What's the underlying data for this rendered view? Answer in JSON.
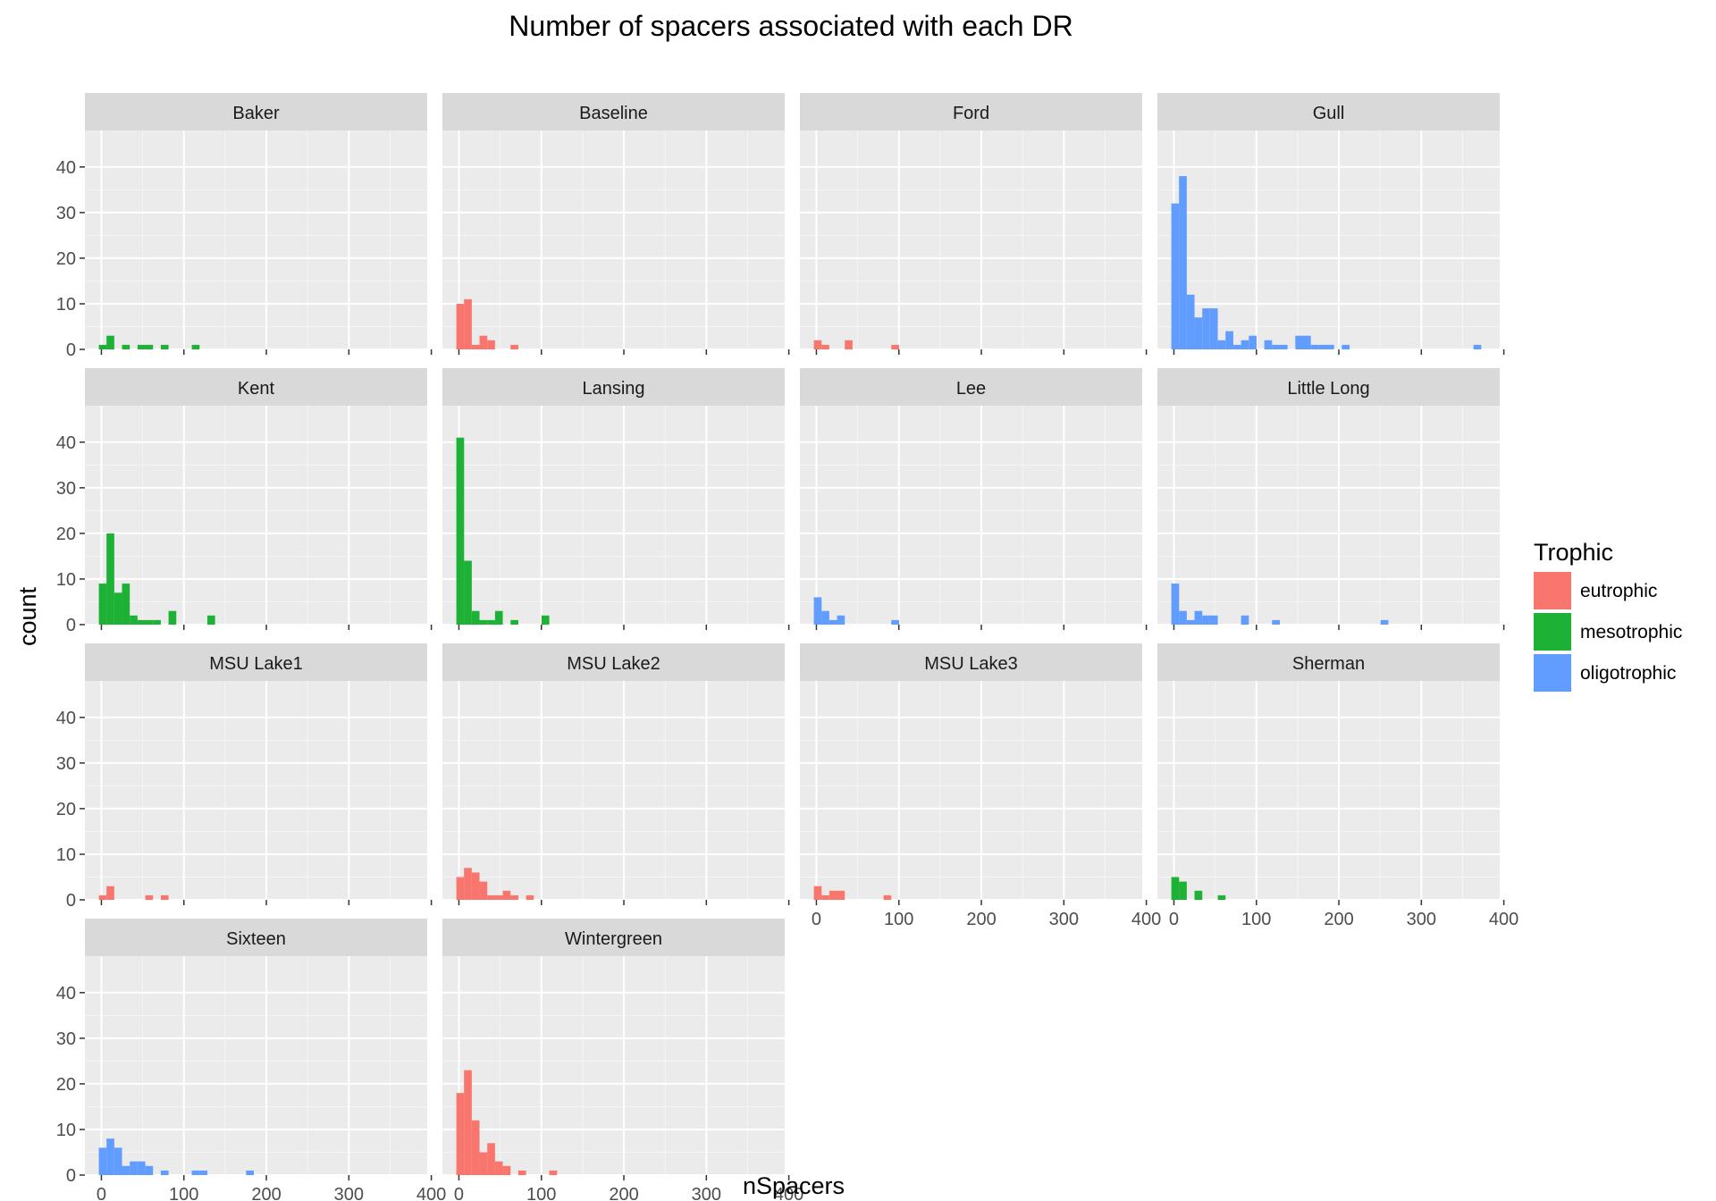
{
  "chart_data": {
    "type": "histogram",
    "title": "Number of spacers associated with each DR",
    "xlabel": "nSpacers",
    "ylabel": "count",
    "xlim": [
      -20,
      395
    ],
    "ylim": [
      0,
      48
    ],
    "x_ticks": [
      0,
      100,
      200,
      300,
      400
    ],
    "y_ticks": [
      0,
      10,
      20,
      30,
      40
    ],
    "bin_width": 9.4,
    "grid": true,
    "legend": {
      "title": "Trophic",
      "position": "right",
      "entries": [
        {
          "name": "eutrophic",
          "color": "#F8766D"
        },
        {
          "name": "mesotrophic",
          "color": "#1DB235"
        },
        {
          "name": "oligotrophic",
          "color": "#619CFF"
        }
      ]
    },
    "panels": [
      {
        "name": "Baker",
        "trophic": "mesotrophic",
        "bins": [
          {
            "x": 1.6,
            "count": 1
          },
          {
            "x": 10.9,
            "count": 3
          },
          {
            "x": 29.7,
            "count": 1
          },
          {
            "x": 48.5,
            "count": 1
          },
          {
            "x": 57.9,
            "count": 1
          },
          {
            "x": 76.7,
            "count": 1
          },
          {
            "x": 114.3,
            "count": 1
          }
        ]
      },
      {
        "name": "Baseline",
        "trophic": "eutrophic",
        "bins": [
          {
            "x": 1.6,
            "count": 10
          },
          {
            "x": 10.9,
            "count": 11
          },
          {
            "x": 20.3,
            "count": 1
          },
          {
            "x": 29.7,
            "count": 3
          },
          {
            "x": 39.1,
            "count": 2
          },
          {
            "x": 67.3,
            "count": 1
          }
        ]
      },
      {
        "name": "Ford",
        "trophic": "eutrophic",
        "bins": [
          {
            "x": 1.6,
            "count": 2
          },
          {
            "x": 10.9,
            "count": 1
          },
          {
            "x": 39.1,
            "count": 2
          },
          {
            "x": 95.5,
            "count": 1
          }
        ]
      },
      {
        "name": "Gull",
        "trophic": "oligotrophic",
        "bins": [
          {
            "x": 1.6,
            "count": 32
          },
          {
            "x": 10.9,
            "count": 38
          },
          {
            "x": 20.3,
            "count": 12
          },
          {
            "x": 29.7,
            "count": 7
          },
          {
            "x": 39.1,
            "count": 9
          },
          {
            "x": 48.5,
            "count": 9
          },
          {
            "x": 57.9,
            "count": 2
          },
          {
            "x": 67.3,
            "count": 4
          },
          {
            "x": 76.7,
            "count": 1
          },
          {
            "x": 86.1,
            "count": 2
          },
          {
            "x": 95.5,
            "count": 3
          },
          {
            "x": 114.3,
            "count": 2
          },
          {
            "x": 123.7,
            "count": 1
          },
          {
            "x": 133.1,
            "count": 1
          },
          {
            "x": 151.9,
            "count": 3
          },
          {
            "x": 161.3,
            "count": 3
          },
          {
            "x": 170.7,
            "count": 1
          },
          {
            "x": 180.1,
            "count": 1
          },
          {
            "x": 189.5,
            "count": 1
          },
          {
            "x": 208.3,
            "count": 1
          },
          {
            "x": 367.9,
            "count": 1
          }
        ]
      },
      {
        "name": "Kent",
        "trophic": "mesotrophic",
        "bins": [
          {
            "x": 1.6,
            "count": 9
          },
          {
            "x": 10.9,
            "count": 20
          },
          {
            "x": 20.3,
            "count": 7
          },
          {
            "x": 29.7,
            "count": 9
          },
          {
            "x": 39.1,
            "count": 2
          },
          {
            "x": 48.5,
            "count": 1
          },
          {
            "x": 57.9,
            "count": 1
          },
          {
            "x": 67.3,
            "count": 1
          },
          {
            "x": 86.1,
            "count": 3
          },
          {
            "x": 133.1,
            "count": 2
          }
        ]
      },
      {
        "name": "Lansing",
        "trophic": "mesotrophic",
        "bins": [
          {
            "x": 1.6,
            "count": 41
          },
          {
            "x": 10.9,
            "count": 14
          },
          {
            "x": 20.3,
            "count": 3
          },
          {
            "x": 29.7,
            "count": 1
          },
          {
            "x": 39.1,
            "count": 1
          },
          {
            "x": 48.5,
            "count": 3
          },
          {
            "x": 67.3,
            "count": 1
          },
          {
            "x": 104.9,
            "count": 2
          }
        ]
      },
      {
        "name": "Lee",
        "trophic": "oligotrophic",
        "bins": [
          {
            "x": 1.6,
            "count": 6
          },
          {
            "x": 10.9,
            "count": 3
          },
          {
            "x": 20.3,
            "count": 1
          },
          {
            "x": 29.7,
            "count": 2
          },
          {
            "x": 95.5,
            "count": 1
          }
        ]
      },
      {
        "name": "Little Long",
        "trophic": "oligotrophic",
        "bins": [
          {
            "x": 1.6,
            "count": 9
          },
          {
            "x": 10.9,
            "count": 3
          },
          {
            "x": 20.3,
            "count": 1
          },
          {
            "x": 29.7,
            "count": 3
          },
          {
            "x": 39.1,
            "count": 2
          },
          {
            "x": 48.5,
            "count": 2
          },
          {
            "x": 86.1,
            "count": 2
          },
          {
            "x": 123.7,
            "count": 1
          },
          {
            "x": 255.3,
            "count": 1
          }
        ]
      },
      {
        "name": "MSU Lake1",
        "trophic": "eutrophic",
        "bins": [
          {
            "x": 1.6,
            "count": 1
          },
          {
            "x": 10.9,
            "count": 3
          },
          {
            "x": 57.9,
            "count": 1
          },
          {
            "x": 76.7,
            "count": 1
          }
        ]
      },
      {
        "name": "MSU Lake2",
        "trophic": "eutrophic",
        "bins": [
          {
            "x": 1.6,
            "count": 5
          },
          {
            "x": 10.9,
            "count": 7
          },
          {
            "x": 20.3,
            "count": 6
          },
          {
            "x": 29.7,
            "count": 4
          },
          {
            "x": 39.1,
            "count": 1
          },
          {
            "x": 48.5,
            "count": 1
          },
          {
            "x": 57.9,
            "count": 2
          },
          {
            "x": 67.3,
            "count": 1
          },
          {
            "x": 86.1,
            "count": 1
          }
        ]
      },
      {
        "name": "MSU Lake3",
        "trophic": "eutrophic",
        "bins": [
          {
            "x": 1.6,
            "count": 3
          },
          {
            "x": 10.9,
            "count": 1
          },
          {
            "x": 20.3,
            "count": 2
          },
          {
            "x": 29.7,
            "count": 2
          },
          {
            "x": 86.1,
            "count": 1
          }
        ]
      },
      {
        "name": "Sherman",
        "trophic": "mesotrophic",
        "bins": [
          {
            "x": 1.6,
            "count": 5
          },
          {
            "x": 10.9,
            "count": 4
          },
          {
            "x": 29.7,
            "count": 2
          },
          {
            "x": 57.9,
            "count": 1
          }
        ]
      },
      {
        "name": "Sixteen",
        "trophic": "oligotrophic",
        "bins": [
          {
            "x": 1.6,
            "count": 6
          },
          {
            "x": 10.9,
            "count": 8
          },
          {
            "x": 20.3,
            "count": 6
          },
          {
            "x": 29.7,
            "count": 2
          },
          {
            "x": 39.1,
            "count": 3
          },
          {
            "x": 48.5,
            "count": 3
          },
          {
            "x": 57.9,
            "count": 2
          },
          {
            "x": 76.7,
            "count": 1
          },
          {
            "x": 114.3,
            "count": 1
          },
          {
            "x": 123.7,
            "count": 1
          },
          {
            "x": 180.1,
            "count": 1
          }
        ]
      },
      {
        "name": "Wintergreen",
        "trophic": "eutrophic",
        "bins": [
          {
            "x": 1.6,
            "count": 18
          },
          {
            "x": 10.9,
            "count": 23
          },
          {
            "x": 20.3,
            "count": 12
          },
          {
            "x": 29.7,
            "count": 5
          },
          {
            "x": 39.1,
            "count": 7
          },
          {
            "x": 48.5,
            "count": 3
          },
          {
            "x": 57.9,
            "count": 2
          },
          {
            "x": 76.7,
            "count": 1
          },
          {
            "x": 114.3,
            "count": 1
          }
        ]
      }
    ]
  }
}
